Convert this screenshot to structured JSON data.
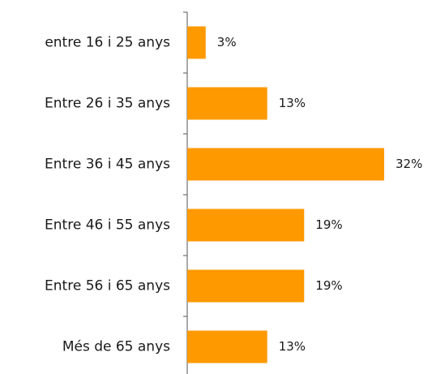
{
  "chart_data": {
    "type": "bar",
    "orientation": "horizontal",
    "categories": [
      "entre 16 i 25 anys",
      "Entre 26 i 35 anys",
      "Entre 36 i 45 anys",
      "Entre 46 i 55 anys",
      "Entre 56 i 65 anys",
      "Més de 65 anys"
    ],
    "values": [
      3,
      13,
      32,
      19,
      19,
      13
    ],
    "value_labels": [
      "3%",
      "13%",
      "32%",
      "19%",
      "19%",
      "13%"
    ],
    "color": "#ff9900"
  }
}
